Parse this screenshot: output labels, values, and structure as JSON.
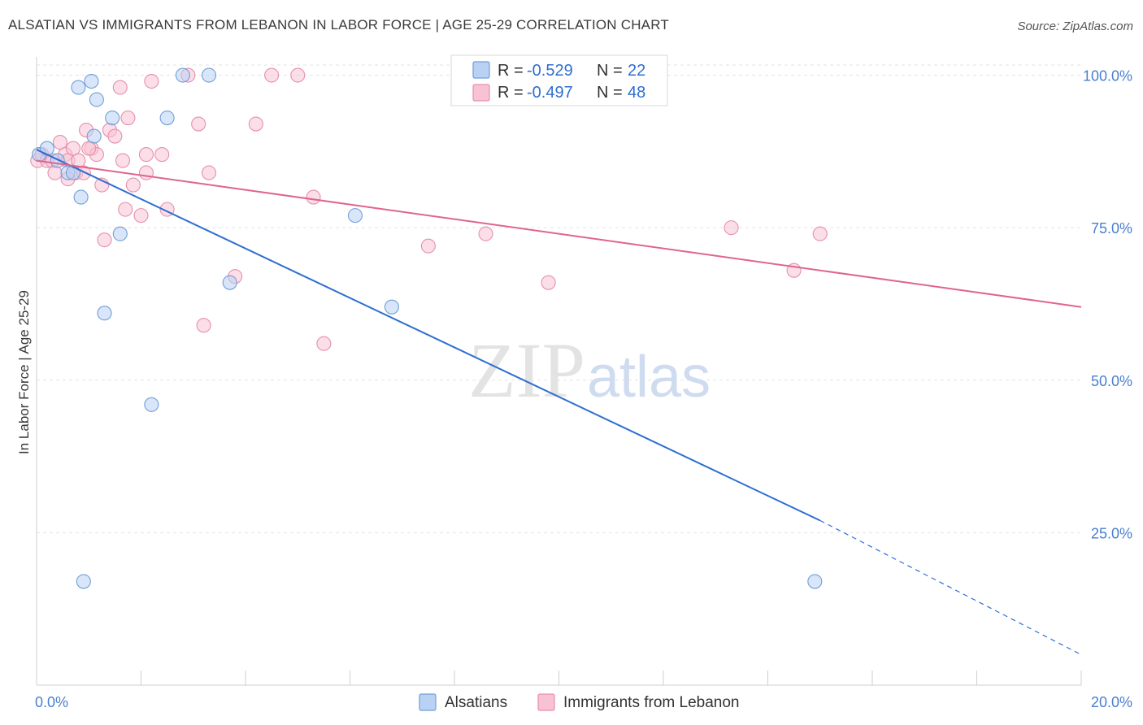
{
  "title": "ALSATIAN VS IMMIGRANTS FROM LEBANON IN LABOR FORCE | AGE 25-29 CORRELATION CHART",
  "source": "Source: ZipAtlas.com",
  "watermark": {
    "zip": "ZIP",
    "atlas": "atlas"
  },
  "legend_stats": {
    "r_label": "R =",
    "n_label": "N =",
    "alsatians": {
      "r": "-0.529",
      "n": "22"
    },
    "lebanon": {
      "r": "-0.497",
      "n": "48"
    }
  },
  "chart_data": {
    "type": "scatter",
    "title": "ALSATIAN VS IMMIGRANTS FROM LEBANON IN LABOR FORCE | AGE 25-29 CORRELATION CHART",
    "xlabel": "",
    "ylabel": "In Labor Force | Age 25-29",
    "xlim": [
      0,
      20
    ],
    "ylim": [
      0,
      103
    ],
    "x_tick_labels": [
      "0.0%",
      "20.0%"
    ],
    "y_ticks": [
      25,
      50,
      75,
      100
    ],
    "y_tick_labels": [
      "25.0%",
      "50.0%",
      "75.0%",
      "100.0%"
    ],
    "grid": true,
    "legend": "bottom-center",
    "colors": {
      "alsatians_fill": "#b9d2f4",
      "alsatians_stroke": "#6f9fd8",
      "alsatians_line": "#2f6fd0",
      "lebanon_fill": "#f8c2d3",
      "lebanon_stroke": "#e690ad",
      "lebanon_line": "#e0648f",
      "tick_label": "#4a7fd0"
    },
    "series": [
      {
        "name": "Alsatians",
        "points": [
          [
            0.05,
            87
          ],
          [
            0.2,
            88
          ],
          [
            0.4,
            86
          ],
          [
            0.6,
            84
          ],
          [
            0.7,
            84
          ],
          [
            0.8,
            98
          ],
          [
            0.85,
            80
          ],
          [
            0.9,
            17
          ],
          [
            1.05,
            99
          ],
          [
            1.15,
            96
          ],
          [
            1.3,
            61
          ],
          [
            1.45,
            93
          ],
          [
            1.6,
            74
          ],
          [
            2.2,
            46
          ],
          [
            2.5,
            93
          ],
          [
            2.8,
            100
          ],
          [
            3.3,
            100
          ],
          [
            3.7,
            66
          ],
          [
            6.1,
            77
          ],
          [
            6.8,
            62
          ],
          [
            14.9,
            17
          ],
          [
            1.1,
            90
          ]
        ],
        "trend": {
          "x0": 0,
          "y0": 87.8,
          "x1": 15.0,
          "y1": 27,
          "dash_to_x": 20,
          "dash_to_y": 5
        }
      },
      {
        "name": "Immigrants from Lebanon",
        "points": [
          [
            0.02,
            86
          ],
          [
            0.1,
            87
          ],
          [
            0.2,
            86
          ],
          [
            0.3,
            86
          ],
          [
            0.35,
            84
          ],
          [
            0.45,
            89
          ],
          [
            0.55,
            87
          ],
          [
            0.6,
            86
          ],
          [
            0.7,
            88
          ],
          [
            0.75,
            84
          ],
          [
            0.8,
            86
          ],
          [
            0.9,
            84
          ],
          [
            0.95,
            91
          ],
          [
            1.05,
            88
          ],
          [
            1.15,
            87
          ],
          [
            1.25,
            82
          ],
          [
            1.4,
            91
          ],
          [
            1.5,
            90
          ],
          [
            1.65,
            86
          ],
          [
            1.75,
            93
          ],
          [
            1.85,
            82
          ],
          [
            2.0,
            77
          ],
          [
            2.1,
            87
          ],
          [
            2.2,
            99
          ],
          [
            2.4,
            87
          ],
          [
            2.5,
            78
          ],
          [
            3.1,
            92
          ],
          [
            3.3,
            84
          ],
          [
            3.8,
            67
          ],
          [
            4.2,
            92
          ],
          [
            4.5,
            100
          ],
          [
            5.0,
            100
          ],
          [
            5.3,
            80
          ],
          [
            5.5,
            56
          ],
          [
            7.5,
            72
          ],
          [
            8.6,
            74
          ],
          [
            9.8,
            66
          ],
          [
            13.3,
            75
          ],
          [
            14.5,
            68
          ],
          [
            15.0,
            74
          ],
          [
            1.3,
            73
          ],
          [
            1.7,
            78
          ],
          [
            3.2,
            59
          ],
          [
            2.9,
            100
          ],
          [
            1.6,
            98
          ],
          [
            0.6,
            83
          ],
          [
            1.0,
            88
          ],
          [
            2.1,
            84
          ]
        ],
        "trend": {
          "x0": 0,
          "y0": 86,
          "x1": 20,
          "y1": 62
        }
      }
    ]
  }
}
